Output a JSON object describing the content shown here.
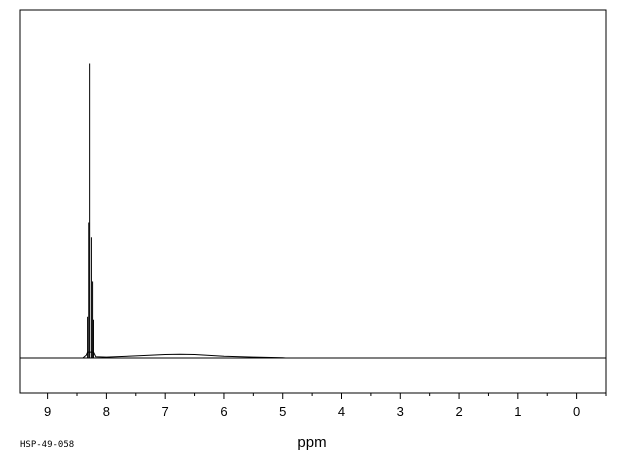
{
  "chart_data": {
    "type": "line",
    "xlabel": "ppm",
    "xlim": [
      9.47,
      -0.5
    ],
    "ylim": [
      -0.12,
      1.08
    ],
    "x_ticks": [
      "9",
      "8",
      "7",
      "6",
      "5",
      "4",
      "3",
      "2",
      "1",
      "0"
    ],
    "grid": false,
    "legend": "none",
    "peaks": [
      {
        "ppm": 8.32,
        "height": 0.14
      },
      {
        "ppm": 8.3,
        "height": 0.46
      },
      {
        "ppm": 8.285,
        "height": 1.0
      },
      {
        "ppm": 8.255,
        "height": 0.41
      },
      {
        "ppm": 8.235,
        "height": 0.26
      },
      {
        "ppm": 8.22,
        "height": 0.13
      }
    ],
    "broad_hump": {
      "ppm": 6.75,
      "height": 0.013
    },
    "series": [
      {
        "x": [
          9.4,
          8.4,
          8.34,
          8.32,
          8.3,
          8.285,
          8.255,
          8.235,
          8.22,
          8.18,
          8.0,
          7.5,
          7.0,
          6.75,
          6.5,
          6.0,
          5.5,
          5.0,
          4.95,
          0,
          -0.5
        ],
        "y": [
          0.0,
          0.0,
          0.01,
          0.14,
          0.46,
          1.0,
          0.41,
          0.26,
          0.13,
          0.004,
          0.003,
          0.007,
          0.012,
          0.013,
          0.012,
          0.006,
          0.003,
          0.001,
          0.0,
          0.0,
          0.0
        ]
      }
    ]
  },
  "footer_code": "HSP-49-058",
  "colors": {
    "line": "#000000",
    "frame": "#000000",
    "background": "#ffffff"
  }
}
